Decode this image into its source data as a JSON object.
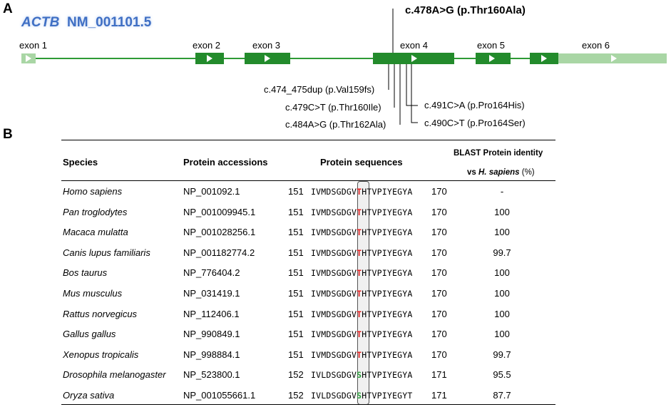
{
  "panel_a": {
    "label": "A",
    "gene_symbol": "ACTB",
    "gene_accession": "NM_001101.5",
    "exons": [
      "exon 1",
      "exon 2",
      "exon 3",
      "exon 4",
      "exon 5",
      "exon 6"
    ],
    "main_variant": "c.478A>G (p.Thr160Ala)",
    "variants": [
      "c.474_475dup (p.Val159fs)",
      "c.479C>T (p.Thr160Ile)",
      "c.484A>G (p.Thr162Ala)",
      "c.491C>A (p.Pro164His)",
      "c.490C>T (p.Pro164Ser)"
    ],
    "colors": {
      "exon": "#238b2c",
      "utr": "#a9d6a5",
      "line": "#2e9b35"
    }
  },
  "panel_b": {
    "label": "B",
    "headers": {
      "species": "Species",
      "accessions": "Protein accessions",
      "sequences": "Protein sequences",
      "identity_line1": "BLAST Protein identity",
      "identity_vs": "vs",
      "identity_species": "H. sapiens",
      "identity_unit": "(%)"
    },
    "rows": [
      {
        "species": "Homo sapiens",
        "accession": "NP_001092.1",
        "start": "151",
        "seq_pre": "IVMDSGDGV",
        "seq_res": "T",
        "seq_post": "HTVPIYEGYA",
        "end": "170",
        "identity": "-"
      },
      {
        "species": "Pan troglodytes",
        "accession": "NP_001009945.1",
        "start": "151",
        "seq_pre": "IVMDSGDGV",
        "seq_res": "T",
        "seq_post": "HTVPIYEGYA",
        "end": "170",
        "identity": "100"
      },
      {
        "species": "Macaca mulatta",
        "accession": "NP_001028256.1",
        "start": "151",
        "seq_pre": "IVMDSGDGV",
        "seq_res": "T",
        "seq_post": "HTVPIYEGYA",
        "end": "170",
        "identity": "100"
      },
      {
        "species": "Canis lupus familiaris",
        "accession": "NP_001182774.2",
        "start": "151",
        "seq_pre": "IVMDSGDGV",
        "seq_res": "T",
        "seq_post": "HTVPIYEGYA",
        "end": "170",
        "identity": "99.7"
      },
      {
        "species": "Bos taurus",
        "accession": "NP_776404.2",
        "start": "151",
        "seq_pre": "IVMDSGDGV",
        "seq_res": "T",
        "seq_post": "HTVPIYEGYA",
        "end": "170",
        "identity": "100"
      },
      {
        "species": "Mus musculus",
        "accession": "NP_031419.1",
        "start": "151",
        "seq_pre": "IVMDSGDGV",
        "seq_res": "T",
        "seq_post": "HTVPIYEGYA",
        "end": "170",
        "identity": "100"
      },
      {
        "species": "Rattus norvegicus",
        "accession": "NP_112406.1",
        "start": "151",
        "seq_pre": "IVMDSGDGV",
        "seq_res": "T",
        "seq_post": "HTVPIYEGYA",
        "end": "170",
        "identity": "100"
      },
      {
        "species": "Gallus gallus",
        "accession": "NP_990849.1",
        "start": "151",
        "seq_pre": "IVMDSGDGV",
        "seq_res": "T",
        "seq_post": "HTVPIYEGYA",
        "end": "170",
        "identity": "100"
      },
      {
        "species": "Xenopus tropicalis",
        "accession": "NP_998884.1",
        "start": "151",
        "seq_pre": "IVMDSGDGV",
        "seq_res": "T",
        "seq_post": "HTVPIYEGYA",
        "end": "170",
        "identity": "99.7"
      },
      {
        "species": "Drosophila melanogaster",
        "accession": "NP_523800.1",
        "start": "152",
        "seq_pre": "IVLDSGDGV",
        "seq_res": "S",
        "seq_post": "HTVPIYEGYA",
        "end": "171",
        "identity": "95.5"
      },
      {
        "species": "Oryza sativa",
        "accession": "NP_001055661.1",
        "start": "152",
        "seq_pre": "IVLDSGDGV",
        "seq_res": "S",
        "seq_post": "HTVPIYEGYT",
        "end": "171",
        "identity": "87.7"
      }
    ],
    "colors": {
      "conserved": "#e02020",
      "substituted": "#2e9e3e"
    }
  }
}
